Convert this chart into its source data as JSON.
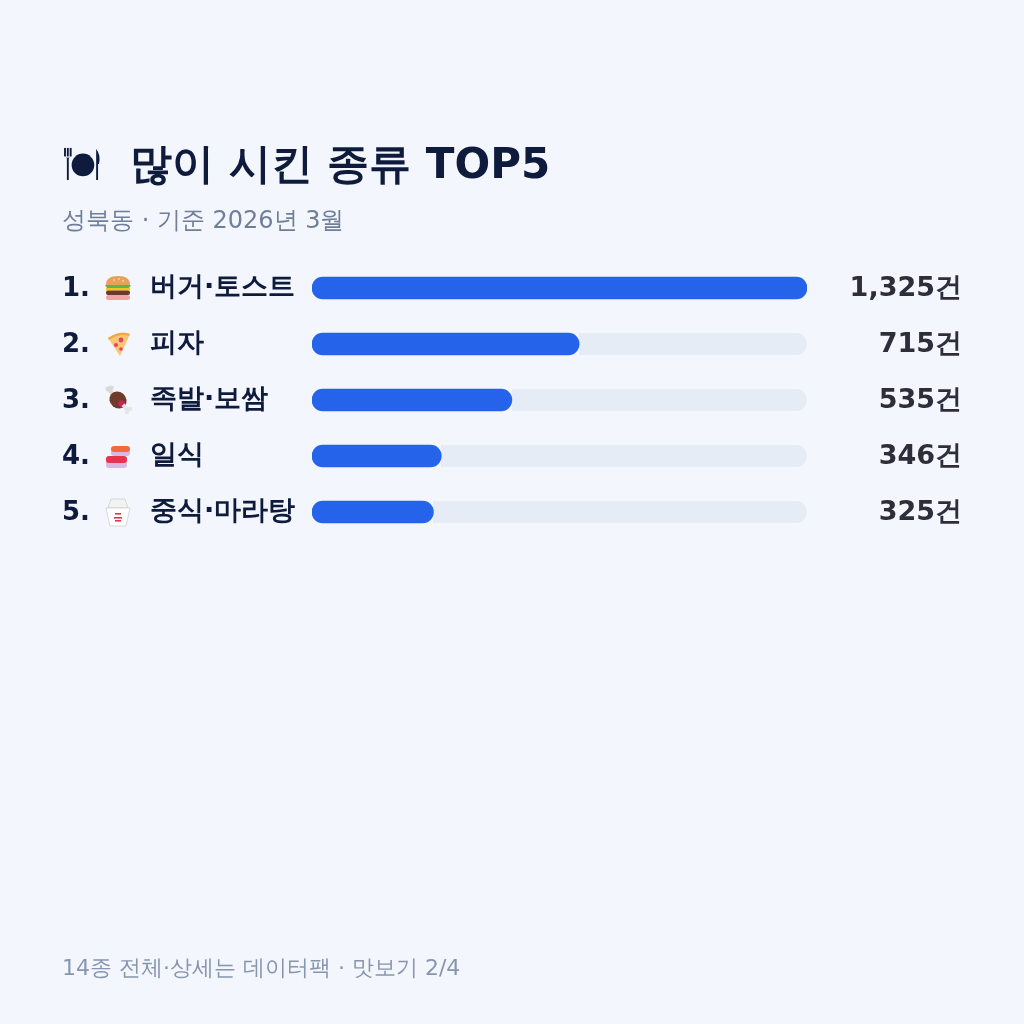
{
  "chart_data": {
    "type": "bar",
    "orientation": "horizontal",
    "title": "많이 시킨 종류 TOP5",
    "subtitle": "성북동 · 기준 2026년 3월",
    "categories": [
      "1. 버거·토스트",
      "2. 피자",
      "3. 족발·보쌈",
      "4. 일식",
      "5. 중식·마라탕"
    ],
    "values": [
      1325,
      715,
      535,
      346,
      325
    ],
    "value_labels": [
      "1,325건",
      "715건",
      "535건",
      "346건",
      "325건"
    ],
    "color": "#2563eb",
    "tick_labels": "y",
    "annotations": [
      "14종 전체·상세는 데이터팩 · 맛보기 2/4"
    ]
  }
}
